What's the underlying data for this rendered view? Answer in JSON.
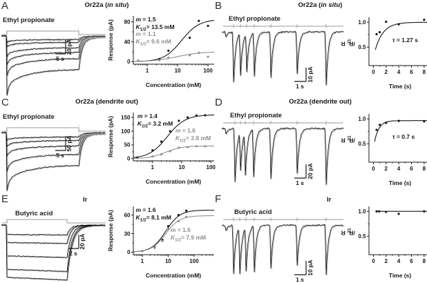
{
  "colors": {
    "black": "#151515",
    "gray": "#8f8f8f",
    "stimulus": "#9a9a9a",
    "background": "#ffffff"
  },
  "panels": [
    {
      "letter": "A",
      "title": [
        {
          "t": "Or22a ("
        },
        {
          "t": "in situ",
          "i": true
        },
        {
          "t": ")"
        }
      ],
      "trace": {
        "label": "Ethyl propionate",
        "kind": "adapting",
        "scale_time": "5 s",
        "scale_current": "20 pA",
        "amplitudes": [
          86,
          58,
          42,
          30,
          16,
          9
        ],
        "stim_on": 8,
        "stim_off": 112
      },
      "chart": 0
    },
    {
      "letter": "B",
      "title": [
        {
          "t": "Or22a ("
        },
        {
          "t": "in situ",
          "i": true
        },
        {
          "t": ")"
        }
      ],
      "trace": {
        "label": "Ethyl propionate",
        "kind": "pulses",
        "scale_time": "1 s",
        "scale_current": "10 pA",
        "pulse_x": [
          17,
          27,
          36,
          47,
          71,
          109,
          151
        ],
        "pulse_depth": [
          72,
          60,
          55,
          62,
          66,
          60,
          78
        ]
      },
      "chart": 1
    },
    {
      "letter": "C",
      "title": [
        {
          "t": "Or22a (dendrite out)"
        }
      ],
      "trace": {
        "label": "Ethyl propionate",
        "kind": "adapting",
        "scale_time": "5 s",
        "scale_current": "50 pA",
        "amplitudes": [
          84,
          56,
          34,
          20,
          11
        ],
        "stim_on": 8,
        "stim_off": 112
      },
      "chart": 2
    },
    {
      "letter": "D",
      "title": [
        {
          "t": "Or22a (dendrite out)"
        }
      ],
      "trace": {
        "label": "Ethyl propionate",
        "kind": "pulses",
        "scale_time": "1 s",
        "scale_current": "20 pA",
        "pulse_x": [
          19,
          27,
          34,
          46,
          71,
          109,
          151
        ],
        "pulse_depth": [
          78,
          56,
          62,
          68,
          72,
          66,
          82
        ]
      },
      "chart": 3
    },
    {
      "letter": "E",
      "title": [
        {
          "t": "Ir"
        }
      ],
      "trace": {
        "label": "Butyric acid",
        "kind": "sustained",
        "scale_time": "2 s",
        "scale_current": "20 pA",
        "amplitudes": [
          14,
          26,
          46,
          66,
          78
        ],
        "stim_on": 8,
        "stim_off": 95
      },
      "chart": 4
    },
    {
      "letter": "F",
      "title": [
        {
          "t": "Ir"
        }
      ],
      "trace": {
        "label": "Butyric acid",
        "kind": "pulses",
        "scale_time": "1 s",
        "scale_current": "10 pA",
        "pulse_x": [
          17,
          26,
          35,
          47,
          71,
          109,
          151
        ],
        "pulse_depth": [
          70,
          68,
          64,
          66,
          62,
          58,
          72
        ]
      },
      "chart": 5
    }
  ],
  "chart_data": [
    {
      "type": "scatter",
      "xscale": "log",
      "title": "Or22a (in situ) dose-response",
      "xlabel": "Concentration (mM)",
      "ylabel": "Response (pA)",
      "xlim": [
        0.35,
        160
      ],
      "ylim": [
        -5,
        92
      ],
      "xticks": [
        1,
        10,
        100
      ],
      "yticks": [
        0,
        40,
        80
      ],
      "series": [
        {
          "name": "transient-current",
          "color": "#151515",
          "fit": {
            "type": "hill",
            "m": 1.5,
            "k": 13.5,
            "ymax": 85
          },
          "x": [
            0.5,
            2.5,
            5,
            25,
            50,
            100
          ],
          "y": [
            2,
            5,
            22,
            48,
            82,
            72
          ],
          "label": {
            "m": "1.5",
            "k12": "13.5 mM"
          },
          "label_pos": [
            0.03,
            0.0
          ]
        },
        {
          "name": "sustained-current",
          "color": "#8f8f8f",
          "fit": {
            "type": "hill",
            "m": 1.1,
            "k": 9.6,
            "ymax": 20
          },
          "x": [
            0.5,
            2.5,
            5,
            25,
            50,
            100
          ],
          "y": [
            2,
            3,
            8,
            13,
            18,
            10
          ],
          "label": {
            "m": "1.1",
            "k12": "9.6 mM"
          },
          "label_pos": [
            0.03,
            0.3
          ]
        }
      ]
    },
    {
      "type": "scatter",
      "xscale": "linear",
      "title": "Or22a (in situ) recovery",
      "xlabel": "Time (s)",
      "ylabel": [
        {
          "t": "R"
        },
        {
          "t": "2",
          "sub": true
        },
        {
          "t": "/R"
        },
        {
          "t": "1",
          "sub": true
        }
      ],
      "xlim": [
        -0.7,
        9.0
      ],
      "ylim": [
        0.13,
        1.1
      ],
      "xticks": [
        0,
        2,
        4,
        6,
        8
      ],
      "yticks": [
        0.5,
        1.0
      ],
      "ytick_decimals": 1,
      "annotation": {
        "text": "τ = 1.27 s",
        "pos": [
          0.38,
          0.4
        ]
      },
      "series": [
        {
          "name": "paired-pulse-recovery",
          "color": "#151515",
          "fit": {
            "type": "exp",
            "tau": 1.27,
            "plateau": 1.0,
            "amp": 0.7,
            "t0": 0.3
          },
          "x": [
            0.5,
            1,
            2,
            4,
            8
          ],
          "y": [
            0.76,
            0.8,
            1.01,
            0.96,
            1.05
          ]
        }
      ]
    },
    {
      "type": "scatter",
      "xscale": "log",
      "title": "Or22a (dendrite out) dose-response",
      "xlabel": "Concentration (mM)",
      "ylabel": "Response (pA)",
      "xlim": [
        0.22,
        130
      ],
      "ylim": [
        -8,
        168
      ],
      "xticks": [
        1,
        10,
        100
      ],
      "yticks": [
        0,
        50,
        100,
        150
      ],
      "series": [
        {
          "name": "transient-current",
          "color": "#151515",
          "fit": {
            "type": "hill",
            "m": 1.4,
            "k": 3.2,
            "ymax": 160
          },
          "x": [
            0.3,
            1,
            2,
            4,
            8,
            16,
            32,
            64
          ],
          "y": [
            4,
            30,
            62,
            100,
            138,
            150,
            157,
            158
          ],
          "label": {
            "m": "1.4",
            "k12": "3.2 mM"
          },
          "label_pos": [
            0.05,
            0.0
          ]
        },
        {
          "name": "sustained-current",
          "color": "#8f8f8f",
          "fit": {
            "type": "hill",
            "m": 1.6,
            "k": 2.8,
            "ymax": 46
          },
          "x": [
            1,
            2,
            4,
            8,
            16,
            32,
            64
          ],
          "y": [
            8,
            15,
            27,
            40,
            42,
            45,
            45
          ],
          "label": {
            "m": "1.6",
            "k12": "2.8 mM"
          },
          "label_pos": [
            0.52,
            0.3
          ]
        }
      ]
    },
    {
      "type": "scatter",
      "xscale": "linear",
      "title": "Or22a (dendrite out) recovery",
      "xlabel": "Time (s)",
      "ylabel": [
        {
          "t": "R"
        },
        {
          "t": "2",
          "sub": true
        },
        {
          "t": "/R"
        },
        {
          "t": "1",
          "sub": true
        }
      ],
      "xlim": [
        -0.7,
        9.0
      ],
      "ylim": [
        0.13,
        1.1
      ],
      "xticks": [
        0,
        2,
        4,
        6,
        8
      ],
      "yticks": [
        0.5,
        1.0
      ],
      "ytick_decimals": 1,
      "annotation": {
        "text": "τ = 0.7 s",
        "pos": [
          0.38,
          0.4
        ]
      },
      "series": [
        {
          "name": "paired-pulse-recovery",
          "color": "#151515",
          "fit": {
            "type": "exp",
            "tau": 0.7,
            "plateau": 0.965,
            "amp": 0.55,
            "t0": 0.18
          },
          "x": [
            0.5,
            1,
            2,
            4,
            8
          ],
          "y": [
            0.78,
            0.88,
            0.92,
            0.96,
            0.95
          ]
        }
      ]
    },
    {
      "type": "scatter",
      "xscale": "log",
      "title": "Ir dose-response",
      "xlabel": "Concentration (mM)",
      "ylabel": "Response (pA)",
      "xlim": [
        0.45,
        600
      ],
      "ylim": [
        -4,
        74
      ],
      "xticks": [
        1,
        10,
        100
      ],
      "yticks": [
        0,
        30,
        60
      ],
      "series": [
        {
          "name": "black-fit",
          "color": "#151515",
          "fit": {
            "type": "hill",
            "m": 1.6,
            "k": 8.1,
            "ymax": 68
          },
          "x": [
            1,
            3,
            6,
            10,
            25,
            50
          ],
          "y": [
            2,
            8,
            20,
            42,
            60,
            67
          ],
          "label": {
            "m": "1.6",
            "k12": "8.1 mM"
          },
          "label_pos": [
            0.03,
            0.0
          ]
        },
        {
          "name": "gray-fit",
          "color": "#8f8f8f",
          "fit": {
            "type": "hill",
            "m": 1.6,
            "k": 7.9,
            "ymax": 59
          },
          "x": [
            1,
            3,
            6,
            10,
            25,
            50
          ],
          "y": [
            2,
            7,
            18,
            38,
            50,
            57
          ],
          "label": {
            "m": "1.6",
            "k12": "7.9 mM"
          },
          "label_pos": [
            0.46,
            0.42
          ]
        }
      ]
    },
    {
      "type": "scatter",
      "xscale": "linear",
      "title": "Ir recovery",
      "xlabel": "Time (s)",
      "ylabel": [
        {
          "t": "R"
        },
        {
          "t": "2",
          "sub": true
        },
        {
          "t": "/R"
        },
        {
          "t": "1",
          "sub": true
        }
      ],
      "xlim": [
        -0.7,
        9.0
      ],
      "ylim": [
        0.13,
        1.1
      ],
      "xticks": [
        0,
        2,
        4,
        6,
        8
      ],
      "yticks": [
        0.5,
        1.0
      ],
      "ytick_decimals": 1,
      "series": [
        {
          "name": "paired-pulse-recovery",
          "color": "#151515",
          "fit": {
            "type": "flat",
            "value": 1.0,
            "t0": 0.4
          },
          "x": [
            0.5,
            0.9,
            2,
            4,
            8
          ],
          "y": [
            1.0,
            1.0,
            0.99,
            0.95,
            1.0
          ]
        }
      ]
    }
  ]
}
